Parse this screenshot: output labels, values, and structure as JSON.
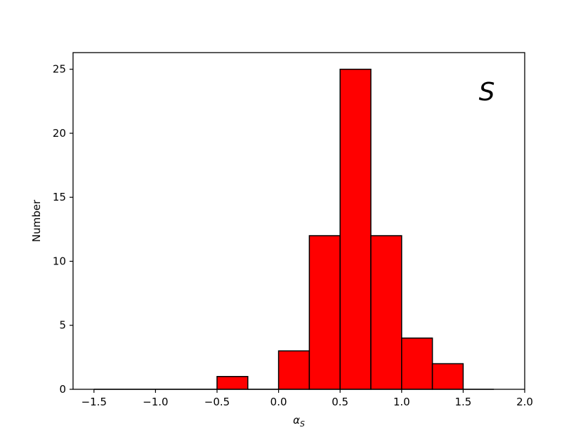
{
  "chart_data": {
    "type": "bar",
    "subtype": "histogram",
    "bins": [
      {
        "x0": -1.5,
        "x1": -1.25,
        "value": 0
      },
      {
        "x0": -1.25,
        "x1": -1.0,
        "value": 0
      },
      {
        "x0": -1.0,
        "x1": -0.75,
        "value": 0
      },
      {
        "x0": -0.75,
        "x1": -0.5,
        "value": 0
      },
      {
        "x0": -0.5,
        "x1": -0.25,
        "value": 1
      },
      {
        "x0": -0.25,
        "x1": 0.0,
        "value": 0
      },
      {
        "x0": 0.0,
        "x1": 0.25,
        "value": 3
      },
      {
        "x0": 0.25,
        "x1": 0.5,
        "value": 12
      },
      {
        "x0": 0.5,
        "x1": 0.75,
        "value": 25
      },
      {
        "x0": 0.75,
        "x1": 1.0,
        "value": 12
      },
      {
        "x0": 1.0,
        "x1": 1.25,
        "value": 4
      },
      {
        "x0": 1.25,
        "x1": 1.5,
        "value": 2
      },
      {
        "x0": 1.5,
        "x1": 1.75,
        "value": 0
      }
    ],
    "xlabel_main": "α",
    "xlabel_sub": "S",
    "ylabel": "Number",
    "annotation": "S",
    "xlim": [
      -1.67,
      2.0
    ],
    "ylim": [
      0,
      26.3
    ],
    "xticks": [
      -1.5,
      -1.0,
      -0.5,
      0.0,
      0.5,
      1.0,
      1.5,
      2.0
    ],
    "xtick_labels": [
      "−1.5",
      "−1.0",
      "−0.5",
      "0.0",
      "0.5",
      "1.0",
      "1.5",
      "2.0"
    ],
    "yticks": [
      0,
      5,
      10,
      15,
      20,
      25
    ],
    "ytick_labels": [
      "0",
      "5",
      "10",
      "15",
      "20",
      "25"
    ],
    "grid": false,
    "legend": "none",
    "bar_color": "#ff0000",
    "edge_color": "#000000"
  }
}
